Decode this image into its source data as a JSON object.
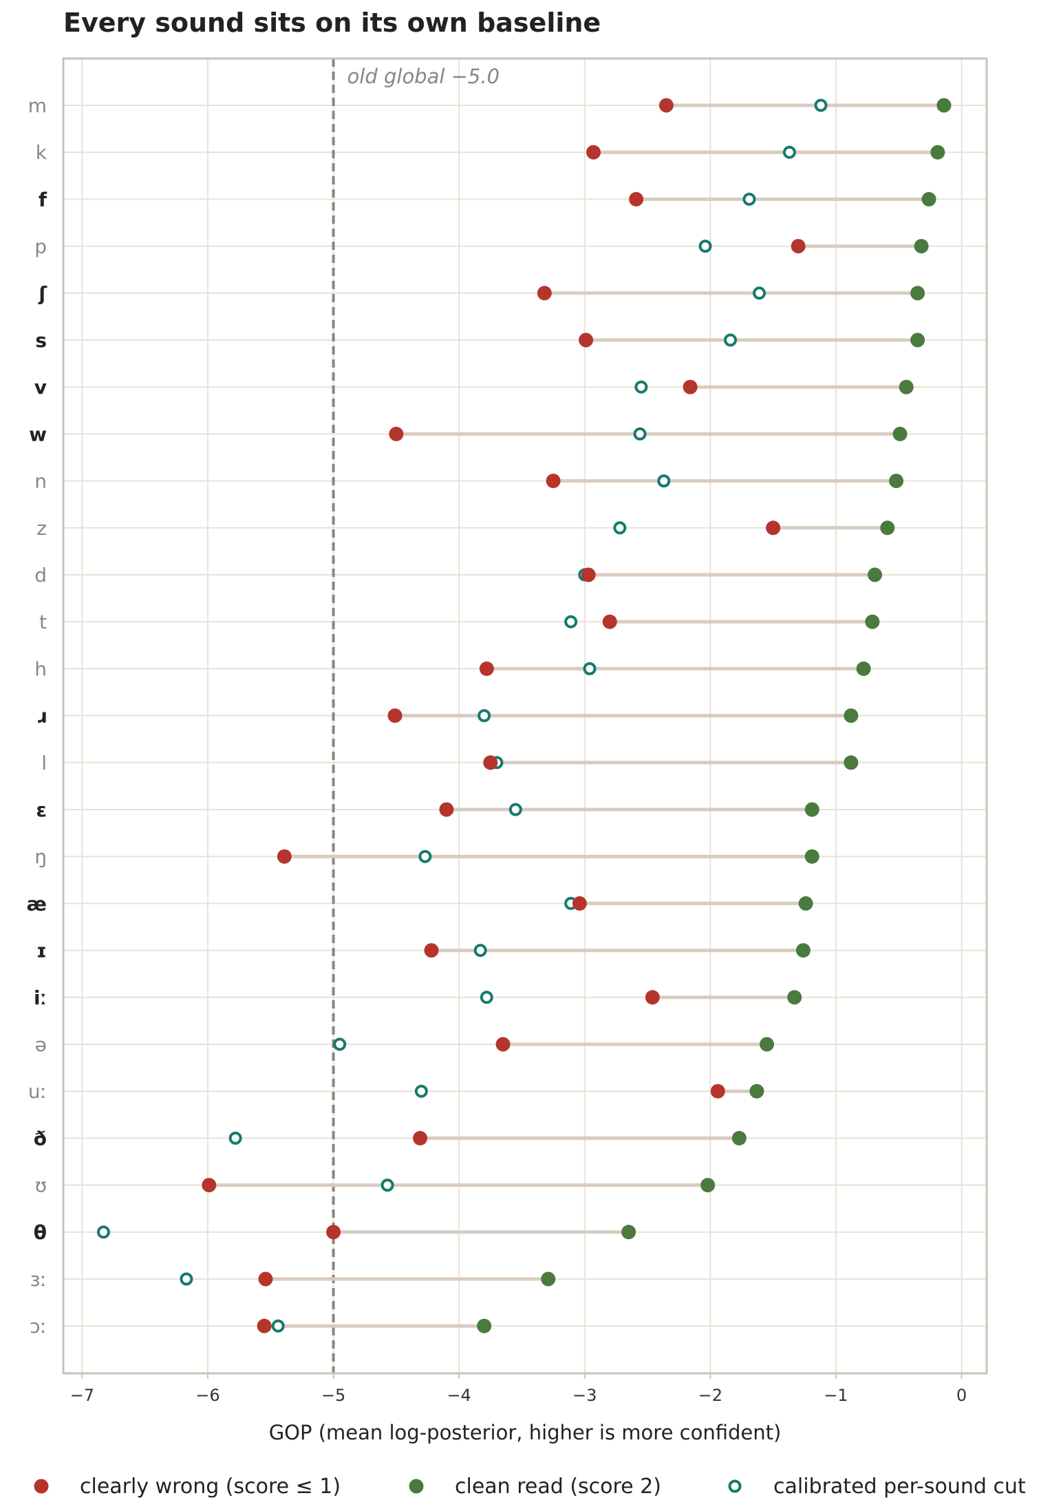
{
  "chart_data": {
    "type": "dot-plot",
    "title": "Every sound sits on its own baseline",
    "xlabel": "GOP  (mean log-posterior, higher is more confident)",
    "ylabel": "",
    "xlim": [
      -7.15,
      0.2
    ],
    "xticks": [
      -7,
      -6,
      -5,
      -4,
      -3,
      -2,
      -1,
      0
    ],
    "xtick_labels": [
      "−7",
      "−6",
      "−5",
      "−4",
      "−3",
      "−2",
      "−1",
      "0"
    ],
    "grid": true,
    "reference_line": {
      "x": -5.0,
      "label": "old global −5.0"
    },
    "legend": {
      "placement": "bottom",
      "entries": [
        {
          "key": "wrong",
          "label": "clearly wrong (score ≤ 1)"
        },
        {
          "key": "clean",
          "label": "clean read (score 2)"
        },
        {
          "key": "cut",
          "label": "calibrated per-sound cut"
        }
      ]
    },
    "colors": {
      "wrong": "#b5352c",
      "clean": "#4a7a3e",
      "cut": "#167a6b",
      "connector": "#d8ccc0",
      "grid": "#e6e3d6",
      "frame": "#c9c2b6",
      "ref_line": "#8a8680",
      "label_bold": "#222222",
      "label_muted": "#8a8680"
    },
    "categories": [
      "m",
      "k",
      "f",
      "p",
      "ʃ",
      "s",
      "v",
      "w",
      "n",
      "z",
      "d",
      "t",
      "h",
      "ɹ",
      "l",
      "ɛ",
      "ŋ",
      "æ",
      "ɪ",
      "iː",
      "ə",
      "uː",
      "ð",
      "ʊ",
      "θ",
      "ɜː",
      "ɔː"
    ],
    "bold": [
      false,
      false,
      true,
      false,
      true,
      true,
      true,
      true,
      false,
      false,
      false,
      false,
      false,
      true,
      false,
      true,
      false,
      true,
      true,
      true,
      false,
      false,
      true,
      false,
      true,
      false,
      false
    ],
    "series": [
      {
        "name": "clearly wrong (score ≤ 1)",
        "key": "wrong",
        "values": [
          -2.35,
          -2.93,
          -2.59,
          -1.3,
          -3.32,
          -2.99,
          -2.16,
          -4.5,
          -3.25,
          -1.5,
          -2.97,
          -2.8,
          -3.78,
          -4.51,
          -3.75,
          -4.1,
          -5.39,
          -3.04,
          -4.22,
          -2.46,
          -3.65,
          -1.94,
          -4.31,
          -5.99,
          -5.0,
          -5.54,
          -5.55
        ]
      },
      {
        "name": "clean read (score 2)",
        "key": "clean",
        "values": [
          -0.14,
          -0.19,
          -0.26,
          -0.32,
          -0.35,
          -0.35,
          -0.44,
          -0.49,
          -0.52,
          -0.59,
          -0.69,
          -0.71,
          -0.78,
          -0.88,
          -0.88,
          -1.19,
          -1.19,
          -1.24,
          -1.26,
          -1.33,
          -1.55,
          -1.63,
          -1.77,
          -2.02,
          -2.65,
          -3.29,
          -3.8
        ]
      },
      {
        "name": "calibrated per-sound cut",
        "key": "cut",
        "values": [
          -1.12,
          -1.37,
          -1.69,
          -2.04,
          -1.61,
          -1.84,
          -2.55,
          -2.56,
          -2.37,
          -2.72,
          -3.0,
          -3.11,
          -2.96,
          -3.8,
          -3.7,
          -3.55,
          -4.27,
          -3.11,
          -3.83,
          -3.78,
          -4.95,
          -4.3,
          -5.78,
          -4.57,
          -6.83,
          -6.17,
          -5.44
        ]
      }
    ]
  }
}
